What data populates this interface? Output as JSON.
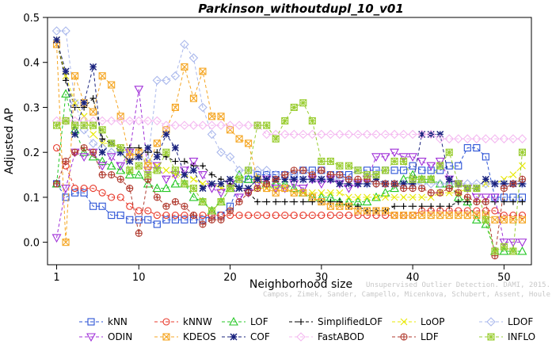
{
  "page": {
    "credit_line1": "Unsupervised Outlier Detection. DAMI, 2015.",
    "credit_line2": "Campos, Zimek, Sander, Campello, Micenkova, Schubert, Assent, Houle"
  },
  "chart_data": {
    "type": "line",
    "title": "Parkinson_withoutdupl_10_v01",
    "xlabel": "Neighborhood size",
    "ylabel": "Adjusted AP",
    "xlim": [
      0,
      53
    ],
    "ylim": [
      -0.05,
      0.5
    ],
    "xticks": [
      1,
      10,
      20,
      30,
      40,
      50
    ],
    "yticks": [
      0.0,
      0.1,
      0.2,
      0.3,
      0.4,
      0.5
    ],
    "ytick_labels": [
      "0.0",
      "0.1",
      "0.2",
      "0.3",
      "0.4",
      "0.5"
    ],
    "x": [
      1,
      2,
      3,
      4,
      5,
      6,
      7,
      8,
      9,
      10,
      11,
      12,
      13,
      14,
      15,
      16,
      17,
      18,
      19,
      20,
      21,
      22,
      23,
      24,
      25,
      26,
      27,
      28,
      29,
      30,
      31,
      32,
      33,
      34,
      35,
      36,
      37,
      38,
      39,
      40,
      41,
      42,
      43,
      44,
      45,
      46,
      47,
      48,
      49,
      50,
      51,
      52
    ],
    "legend_position": "bottom",
    "series": [
      {
        "name": "kNN",
        "color": "#2a52d6",
        "marker": "square",
        "values": [
          0.13,
          0.1,
          0.11,
          0.11,
          0.08,
          0.08,
          0.06,
          0.06,
          0.05,
          0.05,
          0.05,
          0.04,
          0.05,
          0.05,
          0.05,
          0.05,
          0.05,
          0.06,
          0.06,
          0.08,
          0.13,
          0.14,
          0.15,
          0.15,
          0.15,
          0.15,
          0.15,
          0.16,
          0.16,
          0.16,
          0.15,
          0.15,
          0.15,
          0.16,
          0.16,
          0.16,
          0.16,
          0.16,
          0.16,
          0.17,
          0.16,
          0.16,
          0.16,
          0.17,
          0.17,
          0.21,
          0.21,
          0.19,
          0.1,
          0.1,
          0.1,
          0.1
        ]
      },
      {
        "name": "kNNW",
        "color": "#e8392b",
        "marker": "circle",
        "values": [
          0.21,
          0.17,
          0.12,
          0.12,
          0.12,
          0.11,
          0.1,
          0.1,
          0.08,
          0.07,
          0.07,
          0.06,
          0.06,
          0.06,
          0.06,
          0.06,
          0.06,
          0.06,
          0.06,
          0.06,
          0.06,
          0.06,
          0.06,
          0.06,
          0.06,
          0.06,
          0.06,
          0.06,
          0.06,
          0.06,
          0.06,
          0.06,
          0.06,
          0.06,
          0.06,
          0.06,
          0.06,
          0.06,
          0.06,
          0.06,
          0.07,
          0.07,
          0.07,
          0.07,
          0.07,
          0.07,
          0.07,
          0.07,
          0.07,
          0.06,
          0.06,
          0.06
        ]
      },
      {
        "name": "LOF",
        "color": "#25c725",
        "marker": "triangle-up",
        "values": [
          0.13,
          0.33,
          0.25,
          0.2,
          0.19,
          0.18,
          0.17,
          0.16,
          0.15,
          0.15,
          0.13,
          0.12,
          0.12,
          0.13,
          0.13,
          0.1,
          0.09,
          0.07,
          0.09,
          0.12,
          0.15,
          0.14,
          0.14,
          0.13,
          0.13,
          0.13,
          0.12,
          0.11,
          0.1,
          0.1,
          0.1,
          0.09,
          0.09,
          0.09,
          0.09,
          0.1,
          0.11,
          0.12,
          0.14,
          0.15,
          0.14,
          0.14,
          0.13,
          0.13,
          0.1,
          0.09,
          0.05,
          0.04,
          -0.02,
          -0.02,
          -0.02,
          -0.02
        ]
      },
      {
        "name": "SimplifiedLOF",
        "color": "#000000",
        "marker": "plus",
        "values": [
          0.45,
          0.36,
          0.3,
          0.3,
          0.32,
          0.23,
          0.22,
          0.21,
          0.21,
          0.21,
          0.2,
          0.2,
          0.19,
          0.18,
          0.18,
          0.17,
          0.17,
          0.15,
          0.14,
          0.13,
          0.12,
          0.11,
          0.09,
          0.09,
          0.09,
          0.09,
          0.09,
          0.09,
          0.09,
          0.09,
          0.09,
          0.09,
          0.08,
          0.08,
          0.07,
          0.07,
          0.07,
          0.08,
          0.08,
          0.08,
          0.08,
          0.08,
          0.08,
          0.08,
          0.09,
          0.09,
          0.09,
          0.09,
          0.09,
          0.09,
          0.09,
          0.09
        ]
      },
      {
        "name": "LoOP",
        "color": "#e8e800",
        "marker": "x",
        "values": [
          0.45,
          0.37,
          0.31,
          0.28,
          0.24,
          0.22,
          0.22,
          0.21,
          0.2,
          0.19,
          0.18,
          0.17,
          0.16,
          0.15,
          0.15,
          0.14,
          0.13,
          0.13,
          0.12,
          0.12,
          0.12,
          0.12,
          0.12,
          0.12,
          0.12,
          0.12,
          0.11,
          0.11,
          0.11,
          0.11,
          0.11,
          0.11,
          0.1,
          0.1,
          0.1,
          0.1,
          0.1,
          0.1,
          0.1,
          0.1,
          0.1,
          0.1,
          0.11,
          0.11,
          0.11,
          0.12,
          0.12,
          0.13,
          0.13,
          0.14,
          0.15,
          0.17
        ]
      },
      {
        "name": "LDOF",
        "color": "#aab8ec",
        "marker": "diamond",
        "values": [
          0.47,
          0.47,
          0.31,
          0.25,
          0.22,
          0.21,
          0.2,
          0.2,
          0.2,
          0.19,
          0.18,
          0.36,
          0.36,
          0.37,
          0.44,
          0.41,
          0.3,
          0.24,
          0.2,
          0.19,
          0.16,
          0.16,
          0.16,
          0.16,
          0.15,
          0.15,
          0.15,
          0.14,
          0.14,
          0.14,
          0.14,
          0.14,
          0.14,
          0.13,
          0.13,
          0.13,
          0.13,
          0.13,
          0.13,
          0.13,
          0.13,
          0.13,
          0.13,
          0.13,
          0.13,
          0.13,
          0.13,
          0.13,
          0.13,
          0.13,
          0.13,
          0.13
        ]
      },
      {
        "name": "ODIN",
        "color": "#a030d8",
        "marker": "triangle-down",
        "values": [
          0.01,
          0.12,
          0.2,
          0.19,
          0.2,
          0.17,
          0.19,
          0.17,
          0.2,
          0.34,
          0.16,
          0.17,
          0.14,
          0.15,
          0.16,
          0.18,
          0.15,
          0.12,
          0.11,
          0.13,
          0.1,
          0.11,
          0.13,
          0.14,
          0.12,
          0.12,
          0.13,
          0.12,
          0.14,
          0.13,
          0.14,
          0.13,
          0.12,
          0.13,
          0.14,
          0.19,
          0.19,
          0.2,
          0.19,
          0.19,
          0.18,
          0.17,
          0.18,
          0.14,
          0.13,
          0.12,
          0.1,
          0.1,
          0.1,
          0.0,
          0.0,
          0.0
        ]
      },
      {
        "name": "KDEOS",
        "color": "#f5a623",
        "marker": "square-x",
        "values": [
          0.44,
          0.0,
          0.37,
          0.31,
          0.29,
          0.37,
          0.35,
          0.28,
          0.19,
          0.2,
          0.17,
          0.22,
          0.25,
          0.3,
          0.39,
          0.32,
          0.38,
          0.28,
          0.28,
          0.25,
          0.23,
          0.22,
          0.14,
          0.12,
          0.11,
          0.12,
          0.11,
          0.11,
          0.1,
          0.09,
          0.08,
          0.08,
          0.08,
          0.07,
          0.07,
          0.07,
          0.07,
          0.06,
          0.06,
          0.06,
          0.06,
          0.06,
          0.06,
          0.06,
          0.06,
          0.06,
          0.06,
          0.06,
          0.05,
          0.05,
          0.05,
          0.05
        ]
      },
      {
        "name": "COF",
        "color": "#1a237e",
        "marker": "asterisk",
        "values": [
          0.45,
          0.38,
          0.24,
          0.31,
          0.39,
          0.2,
          0.22,
          0.2,
          0.18,
          0.19,
          0.21,
          0.19,
          0.24,
          0.21,
          0.15,
          0.16,
          0.12,
          0.13,
          0.13,
          0.14,
          0.12,
          0.12,
          0.14,
          0.14,
          0.14,
          0.14,
          0.14,
          0.14,
          0.14,
          0.14,
          0.14,
          0.13,
          0.13,
          0.13,
          0.13,
          0.14,
          0.13,
          0.13,
          0.13,
          0.13,
          0.24,
          0.24,
          0.24,
          0.14,
          0.13,
          0.12,
          0.12,
          0.14,
          0.13,
          0.13,
          0.13,
          0.13
        ]
      },
      {
        "name": "FastABOD",
        "color": "#f4b8f0",
        "marker": "diamond",
        "values": [
          0.27,
          0.27,
          0.27,
          0.27,
          0.27,
          0.27,
          0.27,
          0.27,
          0.27,
          0.27,
          0.27,
          0.27,
          0.26,
          0.26,
          0.26,
          0.26,
          0.26,
          0.26,
          0.26,
          0.26,
          0.26,
          0.26,
          0.26,
          0.24,
          0.24,
          0.24,
          0.24,
          0.24,
          0.24,
          0.24,
          0.24,
          0.24,
          0.24,
          0.24,
          0.24,
          0.24,
          0.24,
          0.24,
          0.24,
          0.24,
          0.24,
          0.24,
          0.23,
          0.23,
          0.23,
          0.23,
          0.23,
          0.23,
          0.23,
          0.23,
          0.23,
          0.23
        ]
      },
      {
        "name": "LDF",
        "color": "#b03a2e",
        "marker": "circle-plus",
        "values": [
          0.13,
          0.18,
          0.2,
          0.21,
          0.2,
          0.15,
          0.15,
          0.14,
          0.12,
          0.02,
          0.14,
          0.1,
          0.08,
          0.09,
          0.08,
          0.06,
          0.04,
          0.05,
          0.05,
          0.07,
          0.09,
          0.11,
          0.12,
          0.13,
          0.14,
          0.15,
          0.16,
          0.16,
          0.15,
          0.16,
          0.15,
          0.15,
          0.14,
          0.14,
          0.14,
          0.13,
          0.13,
          0.13,
          0.12,
          0.12,
          0.12,
          0.11,
          0.11,
          0.12,
          0.11,
          0.1,
          0.09,
          0.09,
          -0.03,
          0.12,
          0.13,
          0.14
        ]
      },
      {
        "name": "INFLO",
        "color": "#9acd32",
        "marker": "star-box",
        "values": [
          0.26,
          0.27,
          0.26,
          0.26,
          0.26,
          0.25,
          0.22,
          0.21,
          0.16,
          0.17,
          0.15,
          0.16,
          0.2,
          0.16,
          0.13,
          0.12,
          0.09,
          0.07,
          0.09,
          0.12,
          0.14,
          0.16,
          0.26,
          0.26,
          0.23,
          0.27,
          0.3,
          0.31,
          0.27,
          0.18,
          0.18,
          0.17,
          0.17,
          0.16,
          0.15,
          0.15,
          0.16,
          0.18,
          0.18,
          0.14,
          0.14,
          0.14,
          0.17,
          0.2,
          0.13,
          0.12,
          0.12,
          0.05,
          -0.02,
          -0.01,
          -0.02,
          0.2
        ]
      }
    ]
  }
}
